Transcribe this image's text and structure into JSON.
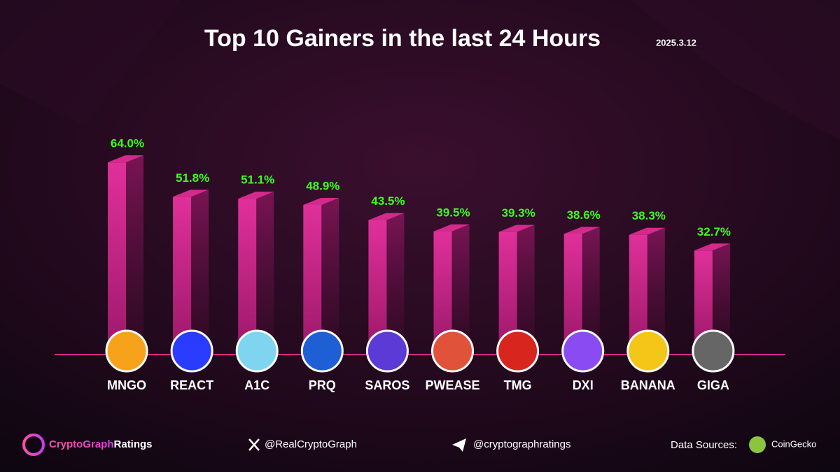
{
  "chart_data": {
    "type": "bar3d",
    "title": "Top 10 Gainers in the last 24 Hours",
    "subtitle": "2025.3.12",
    "categories": [
      "MNGO",
      "REACT",
      "A1C",
      "PRQ",
      "SAROS",
      "PWEASE",
      "TMG",
      "DXI",
      "BANANA",
      "GIGA"
    ],
    "values": [
      64.0,
      51.8,
      51.1,
      48.9,
      43.5,
      39.5,
      39.3,
      38.6,
      38.3,
      32.7
    ],
    "value_labels": [
      "64.0%",
      "51.8%",
      "51.1%",
      "48.9%",
      "43.5%",
      "39.5%",
      "39.3%",
      "38.6%",
      "38.3%",
      "32.7%"
    ],
    "color": "#d42a8c",
    "label_color": "#3cff1e",
    "ylim": [
      0,
      70
    ]
  },
  "footer": {
    "brand_main": "CryptoGraph",
    "brand_sub": "Ratings",
    "x_handle": "@RealCryptoGraph",
    "telegram": "@cryptographratings",
    "sources_label": "Data Sources:",
    "source": "CoinGecko"
  }
}
